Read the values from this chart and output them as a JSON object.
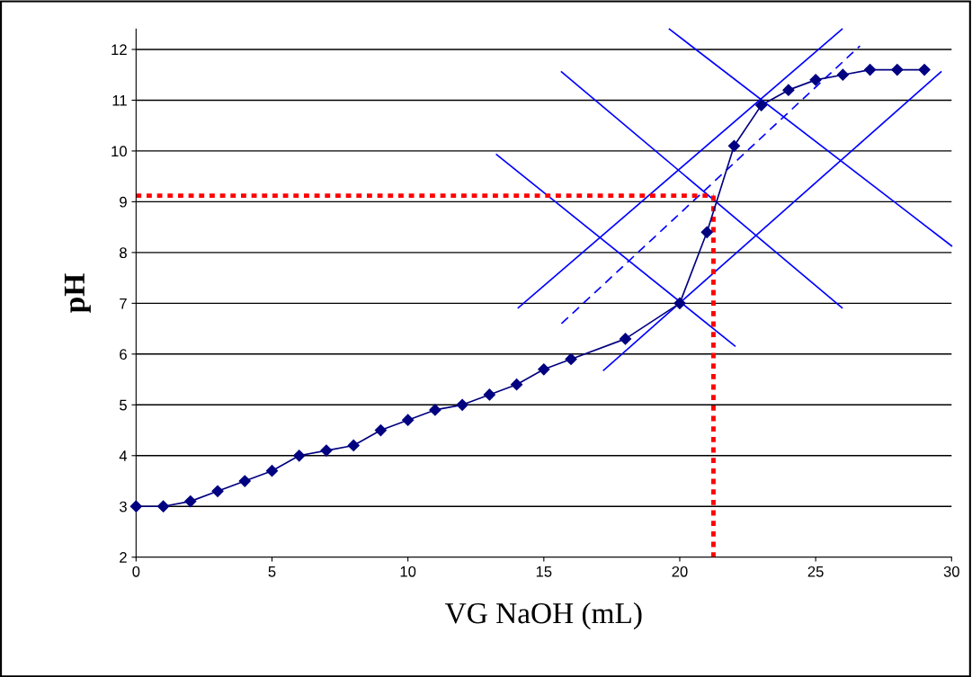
{
  "chart_data": {
    "type": "line",
    "xlabel": "VG NaOH (mL)",
    "ylabel": "pH",
    "xlim": [
      0,
      30
    ],
    "xticks": [
      0,
      5,
      10,
      15,
      20,
      25,
      30
    ],
    "ylim": [
      2,
      12.4
    ],
    "yticks": [
      2,
      3,
      4,
      5,
      6,
      7,
      8,
      9,
      10,
      11,
      12
    ],
    "grid": "y",
    "legend": false,
    "series": [
      {
        "x": [
          0,
          1,
          2,
          3,
          4,
          5,
          6,
          7,
          8,
          9,
          10,
          11,
          12,
          13,
          14,
          15,
          16,
          18,
          20,
          21,
          22,
          23,
          24,
          25,
          26,
          27,
          28,
          29
        ],
        "values": [
          3.0,
          3.0,
          3.1,
          3.3,
          3.5,
          3.7,
          4.0,
          4.1,
          4.2,
          4.5,
          4.7,
          4.9,
          5.0,
          5.2,
          5.4,
          5.7,
          5.9,
          6.3,
          7.0,
          8.4,
          10.1,
          10.9,
          11.2,
          11.4,
          11.5,
          11.6,
          11.6,
          11.6
        ],
        "color": "#000080",
        "marker": "diamond",
        "line_style": "solid"
      },
      {
        "x": [
          14.06,
          25.97
        ],
        "values": [
          6.91,
          12.4
        ],
        "color": "#0000ff",
        "marker": "none",
        "line_style": "solid"
      },
      {
        "x": [
          15.65,
          25.97
        ],
        "values": [
          11.56,
          6.91
        ],
        "color": "#0000ff",
        "marker": "none",
        "line_style": "solid"
      },
      {
        "x": [
          13.26,
          22.03
        ],
        "values": [
          9.93,
          6.16
        ],
        "color": "#0000ff",
        "marker": "none",
        "line_style": "solid"
      },
      {
        "x": [
          19.62,
          30
        ],
        "values": [
          12.4,
          8.13
        ],
        "color": "#0000ff",
        "marker": "none",
        "line_style": "solid"
      },
      {
        "x": [
          17.2,
          29.61
        ],
        "values": [
          5.68,
          11.56
        ],
        "color": "#0000ff",
        "marker": "none",
        "line_style": "solid"
      },
      {
        "x": [
          15.65,
          26.63
        ],
        "values": [
          6.6,
          12.07
        ],
        "color": "#0000ff",
        "marker": "none",
        "line_style": "dashed"
      },
      {
        "x": [
          0,
          21.24
        ],
        "values": [
          9.12,
          9.12
        ],
        "color": "#ff0000",
        "marker": "none",
        "line_style": "dotted"
      },
      {
        "x": [
          21.24,
          21.24
        ],
        "values": [
          9.12,
          2
        ],
        "color": "#ff0000",
        "marker": "none",
        "line_style": "dotted"
      }
    ]
  }
}
